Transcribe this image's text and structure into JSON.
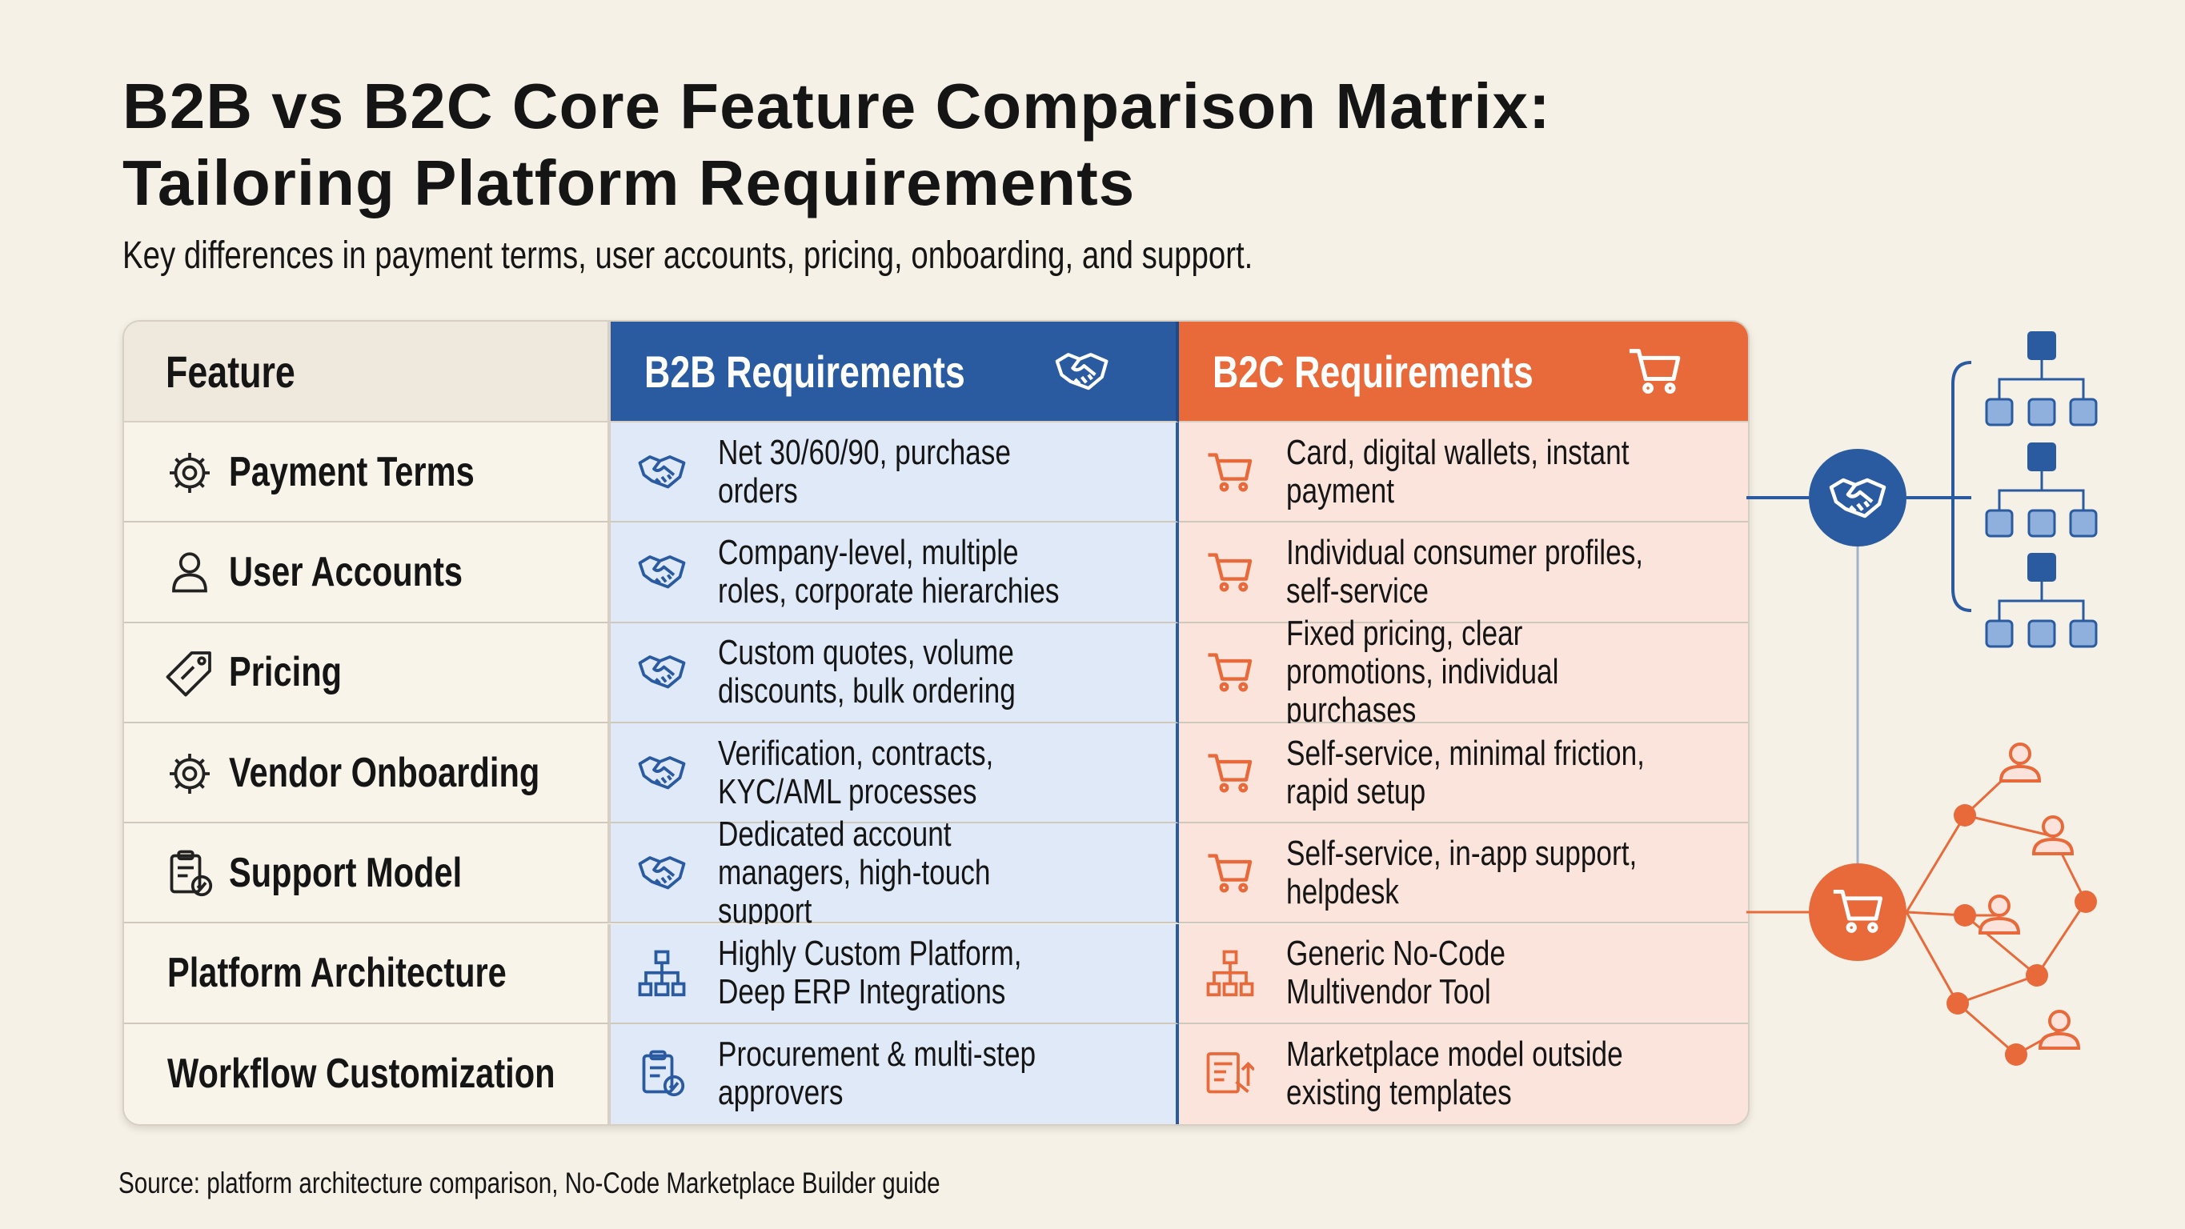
{
  "header": {
    "title": [
      "B2B vs B2C Core Feature Comparison Matrix:",
      "Tailoring Platform Requirements"
    ],
    "subtitle": "Key differences in payment terms, user accounts, pricing, onboarding, and support."
  },
  "table": {
    "columns": [
      "Feature",
      "B2B Requirements",
      "B2C Requirements"
    ],
    "rows": [
      [
        "Payment Terms",
        "Net 30/60/90, purchase orders",
        "Card, digital wallets, instant payment"
      ],
      [
        "User Accounts",
        "Company-level, multiple roles, corporate hierarchies",
        "Individual consumer profiles, self-service"
      ],
      [
        "Pricing",
        "Custom quotes, volume discounts, bulk ordering",
        "Fixed pricing, clear promotions, individual purchases"
      ],
      [
        "Vendor Onboarding",
        "Verification, contracts, KYC/AML processes",
        "Self-service, minimal friction, rapid setup"
      ],
      [
        "Support Model",
        "Dedicated account managers, high-touch support",
        "Self-service, in-app support, helpdesk"
      ],
      [
        "Platform Architecture",
        "Highly Custom Platform, Deep ERP Integrations",
        "Generic No-Code Multivendor Tool"
      ],
      [
        "Workflow Customization",
        "Procurement & multi-step approvers",
        "Marketplace model outside existing templates"
      ]
    ]
  },
  "source": "Source: platform architecture comparison, No-Code Marketplace Builder guide"
}
